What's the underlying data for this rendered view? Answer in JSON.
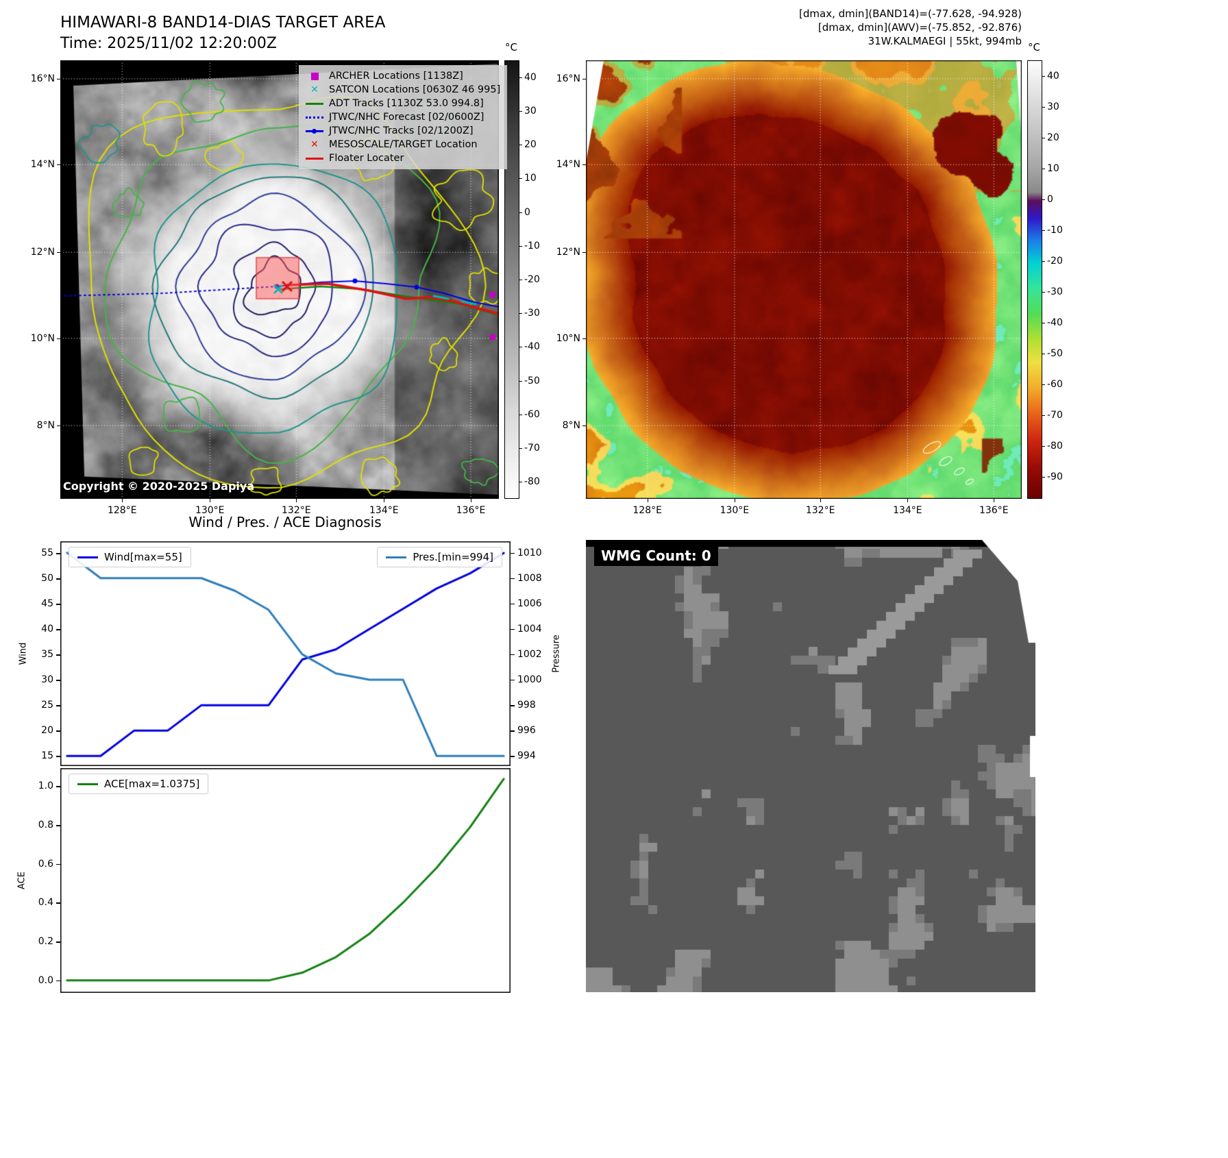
{
  "figure": {
    "background": "#ffffff"
  },
  "panel_band14": {
    "title": "HIMAWARI-8 BAND14-DIAS TARGET AREA",
    "subtitle": "Time: 2025/11/02 12:20:00Z",
    "copyright": "Copyright © 2020-2025 Dapiya",
    "colorbar_unit": "°C",
    "colorbar_ticks": [
      "40",
      "30",
      "20",
      "10",
      "0",
      "-10",
      "-20",
      "-30",
      "-40",
      "-50",
      "-60",
      "-70",
      "-80"
    ],
    "x_ticks": [
      "128°E",
      "130°E",
      "132°E",
      "134°E",
      "136°E"
    ],
    "y_ticks": [
      "16°N",
      "14°N",
      "12°N",
      "10°N",
      "8°N"
    ],
    "legend": [
      {
        "icon": "archer-marker-icon",
        "marker": "square",
        "color": "#c800c8",
        "label": "ARCHER Locations [1138Z]"
      },
      {
        "icon": "satcon-marker-icon",
        "marker": "x",
        "color": "#00b8b8",
        "label": "SATCON Locations [0630Z 46 995]"
      },
      {
        "icon": "adt-track-icon",
        "marker": "line",
        "color": "#128212",
        "label": "ADT Tracks [1130Z 53.0 994.8]"
      },
      {
        "icon": "jtwc-forecast-icon",
        "marker": "dotted",
        "color": "#0000e0",
        "label": "JTWC/NHC Forecast [02/0600Z]"
      },
      {
        "icon": "jtwc-track-icon",
        "marker": "line-dot",
        "color": "#0000e0",
        "label": "JTWC/NHC Tracks [02/1200Z]"
      },
      {
        "icon": "mesoscale-target-icon",
        "marker": "x",
        "color": "#e01010",
        "label": "MESOSCALE/TARGET Location"
      },
      {
        "icon": "floater-locater-icon",
        "marker": "line",
        "color": "#e01010",
        "label": "Floater Locater"
      }
    ],
    "target_box_color": "#ff5a5a"
  },
  "panel_awv": {
    "info_lines": [
      "[dmax, dmin](BAND14)=(-77.628, -94.928)",
      "[dmax, dmin](AWV)=(-75.852, -92.876)",
      "31W.KALMAEGI | 55kt, 994mb"
    ],
    "colorbar_unit": "°C",
    "colorbar_ticks": [
      "40",
      "30",
      "20",
      "10",
      "0",
      "-10",
      "-20",
      "-30",
      "-40",
      "-50",
      "-60",
      "-70",
      "-80",
      "-90"
    ],
    "x_ticks": [
      "128°E",
      "130°E",
      "132°E",
      "134°E",
      "136°E"
    ],
    "y_ticks": [
      "16°N",
      "14°N",
      "12°N",
      "10°N",
      "8°N"
    ]
  },
  "diagnosis": {
    "title": "Wind / Pres. / ACE Diagnosis"
  },
  "wmg": {
    "label": "WMG Count: 0"
  },
  "chart_data": [
    {
      "id": "wind_pressure",
      "type": "line",
      "x": [
        0,
        1,
        2,
        3,
        4,
        5,
        6,
        7,
        8,
        9,
        10,
        11,
        12,
        13
      ],
      "series": [
        {
          "name": "Wind[max=55]",
          "axis": "left",
          "color": "#0000e0",
          "values": [
            15,
            15,
            20,
            20,
            25,
            25,
            25,
            34,
            36,
            40,
            44,
            48,
            51,
            55
          ]
        },
        {
          "name": "Pres.[min=994]",
          "axis": "right",
          "color": "#2e7ebb",
          "values": [
            1010,
            1008,
            1008,
            1008,
            1008,
            1007,
            1005.5,
            1002,
            1000.5,
            1000,
            1000,
            994,
            994,
            994
          ]
        }
      ],
      "ylabel_left": "Wind",
      "ylabel_right": "Pressure",
      "yticks_left": [
        "15",
        "20",
        "25",
        "30",
        "35",
        "40",
        "45",
        "50",
        "55"
      ],
      "yticks_right": [
        "994",
        "996",
        "998",
        "1000",
        "1002",
        "1004",
        "1006",
        "1008",
        "1010"
      ],
      "ylim_left": [
        13,
        57.3
      ],
      "ylim_right": [
        993.2,
        1010.9
      ],
      "xlim": [
        -0.2,
        13.2
      ],
      "legend": [
        "Wind[max=55]",
        "Pres.[min=994]"
      ]
    },
    {
      "id": "ace",
      "type": "line",
      "x": [
        0,
        1,
        2,
        3,
        4,
        5,
        6,
        7,
        8,
        9,
        10,
        11,
        12,
        13
      ],
      "series": [
        {
          "name": "ACE[max=1.0375]",
          "axis": "left",
          "color": "#128212",
          "values": [
            0,
            0,
            0,
            0,
            0,
            0,
            0,
            0.04,
            0.12,
            0.24,
            0.4,
            0.58,
            0.79,
            1.0375
          ]
        }
      ],
      "ylabel_left": "ACE",
      "yticks_left": [
        "0.0",
        "0.2",
        "0.4",
        "0.6",
        "0.8",
        "1.0"
      ],
      "ylim_left": [
        -0.064,
        1.093
      ],
      "xlim": [
        -0.2,
        13.2
      ],
      "legend": [
        "ACE[max=1.0375]"
      ]
    }
  ]
}
